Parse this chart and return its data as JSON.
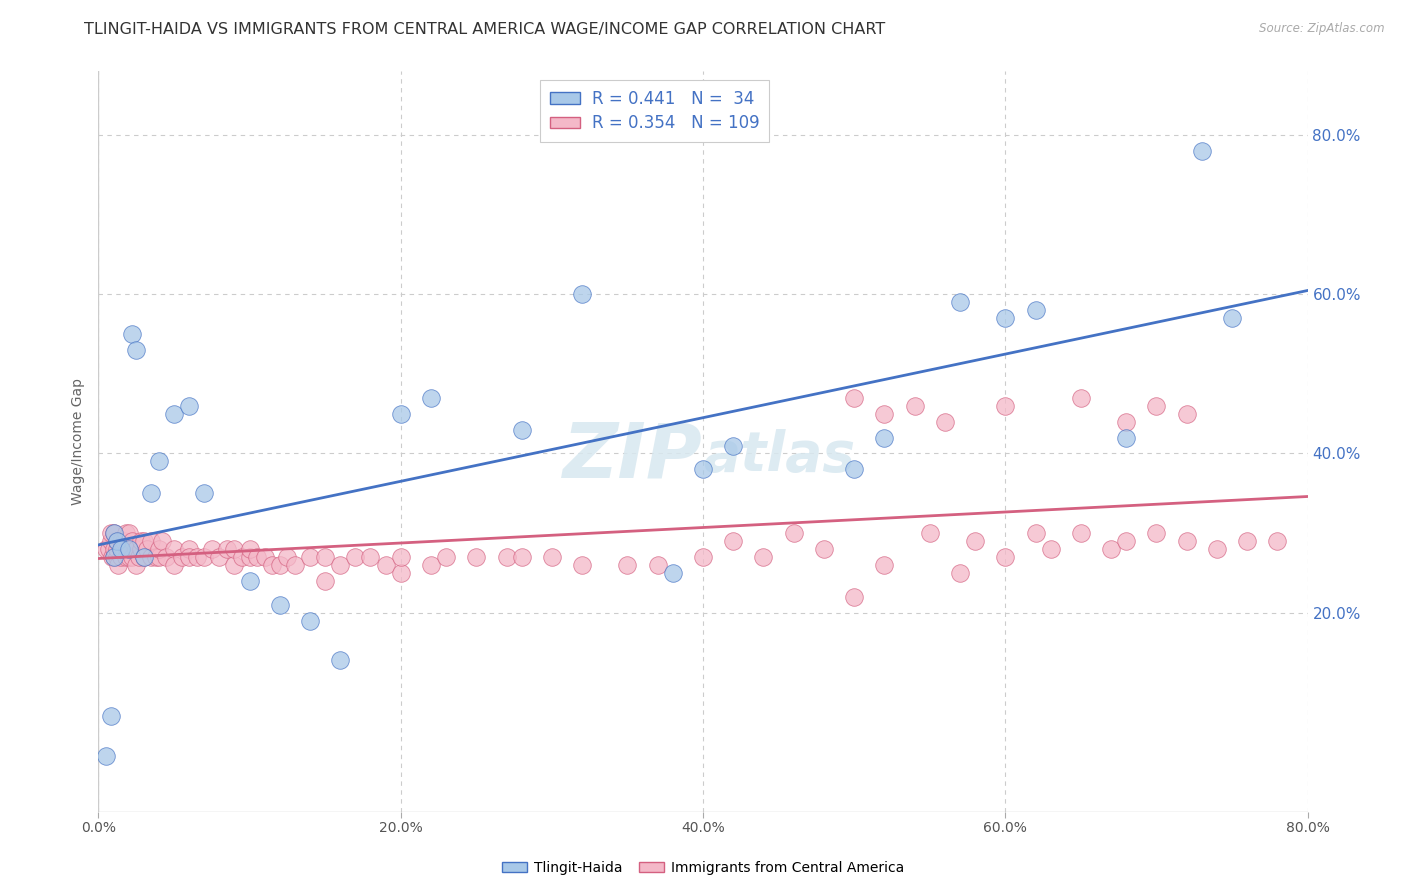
{
  "title": "TLINGIT-HAIDA VS IMMIGRANTS FROM CENTRAL AMERICA WAGE/INCOME GAP CORRELATION CHART",
  "source": "Source: ZipAtlas.com",
  "ylabel": "Wage/Income Gap",
  "watermark": "ZIPatlas",
  "legend_box": {
    "r1": 0.441,
    "n1": 34,
    "r2": 0.354,
    "n2": 109
  },
  "color_blue": "#a8c8e8",
  "color_pink": "#f4b8c8",
  "line_blue": "#4472c4",
  "line_pink": "#d46080",
  "blue_x": [
    0.005,
    0.008,
    0.01,
    0.01,
    0.012,
    0.015,
    0.02,
    0.022,
    0.025,
    0.03,
    0.035,
    0.04,
    0.05,
    0.06,
    0.07,
    0.1,
    0.12,
    0.14,
    0.16,
    0.2,
    0.22,
    0.28,
    0.32,
    0.38,
    0.4,
    0.42,
    0.5,
    0.52,
    0.57,
    0.6,
    0.62,
    0.68,
    0.73,
    0.75
  ],
  "blue_y": [
    0.02,
    0.07,
    0.27,
    0.3,
    0.29,
    0.28,
    0.28,
    0.55,
    0.53,
    0.27,
    0.35,
    0.39,
    0.45,
    0.46,
    0.35,
    0.24,
    0.21,
    0.19,
    0.14,
    0.45,
    0.47,
    0.43,
    0.6,
    0.25,
    0.38,
    0.41,
    0.38,
    0.42,
    0.59,
    0.57,
    0.58,
    0.42,
    0.78,
    0.57
  ],
  "pink_x": [
    0.005,
    0.007,
    0.008,
    0.008,
    0.009,
    0.01,
    0.01,
    0.01,
    0.012,
    0.012,
    0.012,
    0.013,
    0.015,
    0.015,
    0.015,
    0.016,
    0.017,
    0.018,
    0.018,
    0.019,
    0.02,
    0.02,
    0.02,
    0.022,
    0.022,
    0.025,
    0.025,
    0.027,
    0.028,
    0.028,
    0.03,
    0.03,
    0.032,
    0.035,
    0.035,
    0.038,
    0.04,
    0.04,
    0.042,
    0.045,
    0.05,
    0.05,
    0.055,
    0.06,
    0.06,
    0.065,
    0.07,
    0.075,
    0.08,
    0.085,
    0.09,
    0.09,
    0.095,
    0.1,
    0.1,
    0.105,
    0.11,
    0.115,
    0.12,
    0.125,
    0.13,
    0.14,
    0.15,
    0.15,
    0.16,
    0.17,
    0.18,
    0.19,
    0.2,
    0.2,
    0.22,
    0.23,
    0.25,
    0.27,
    0.28,
    0.3,
    0.32,
    0.35,
    0.37,
    0.4,
    0.42,
    0.44,
    0.46,
    0.48,
    0.5,
    0.52,
    0.55,
    0.57,
    0.58,
    0.6,
    0.62,
    0.63,
    0.65,
    0.67,
    0.68,
    0.7,
    0.72,
    0.74,
    0.76,
    0.78,
    0.5,
    0.52,
    0.54,
    0.56,
    0.6,
    0.65,
    0.68,
    0.7,
    0.72
  ],
  "pink_y": [
    0.28,
    0.28,
    0.29,
    0.3,
    0.27,
    0.27,
    0.28,
    0.3,
    0.27,
    0.28,
    0.29,
    0.26,
    0.27,
    0.28,
    0.29,
    0.28,
    0.29,
    0.27,
    0.3,
    0.28,
    0.27,
    0.28,
    0.3,
    0.27,
    0.29,
    0.26,
    0.28,
    0.27,
    0.28,
    0.29,
    0.27,
    0.29,
    0.28,
    0.27,
    0.29,
    0.27,
    0.27,
    0.28,
    0.29,
    0.27,
    0.28,
    0.26,
    0.27,
    0.28,
    0.27,
    0.27,
    0.27,
    0.28,
    0.27,
    0.28,
    0.26,
    0.28,
    0.27,
    0.27,
    0.28,
    0.27,
    0.27,
    0.26,
    0.26,
    0.27,
    0.26,
    0.27,
    0.24,
    0.27,
    0.26,
    0.27,
    0.27,
    0.26,
    0.25,
    0.27,
    0.26,
    0.27,
    0.27,
    0.27,
    0.27,
    0.27,
    0.26,
    0.26,
    0.26,
    0.27,
    0.29,
    0.27,
    0.3,
    0.28,
    0.22,
    0.26,
    0.3,
    0.25,
    0.29,
    0.27,
    0.3,
    0.28,
    0.3,
    0.28,
    0.29,
    0.3,
    0.29,
    0.28,
    0.29,
    0.29,
    0.47,
    0.45,
    0.46,
    0.44,
    0.46,
    0.47,
    0.44,
    0.46,
    0.45
  ],
  "xlim": [
    0.0,
    0.8
  ],
  "ylim": [
    -0.05,
    0.88
  ],
  "ytick_values": [
    0.2,
    0.4,
    0.6,
    0.8
  ],
  "ytick_labels": [
    "20.0%",
    "40.0%",
    "60.0%",
    "80.0%"
  ],
  "xtick_values": [
    0.0,
    0.2,
    0.4,
    0.6,
    0.8
  ],
  "xtick_labels": [
    "0.0%",
    "20.0%",
    "40.0%",
    "60.0%",
    "80.0%"
  ],
  "grid_color": "#cccccc",
  "bg_color": "#ffffff",
  "title_fontsize": 11.5,
  "source_fontsize": 8.5,
  "axis_label_fontsize": 10,
  "tick_fontsize": 10,
  "legend_fontsize": 12,
  "watermark_fontsize": 55
}
